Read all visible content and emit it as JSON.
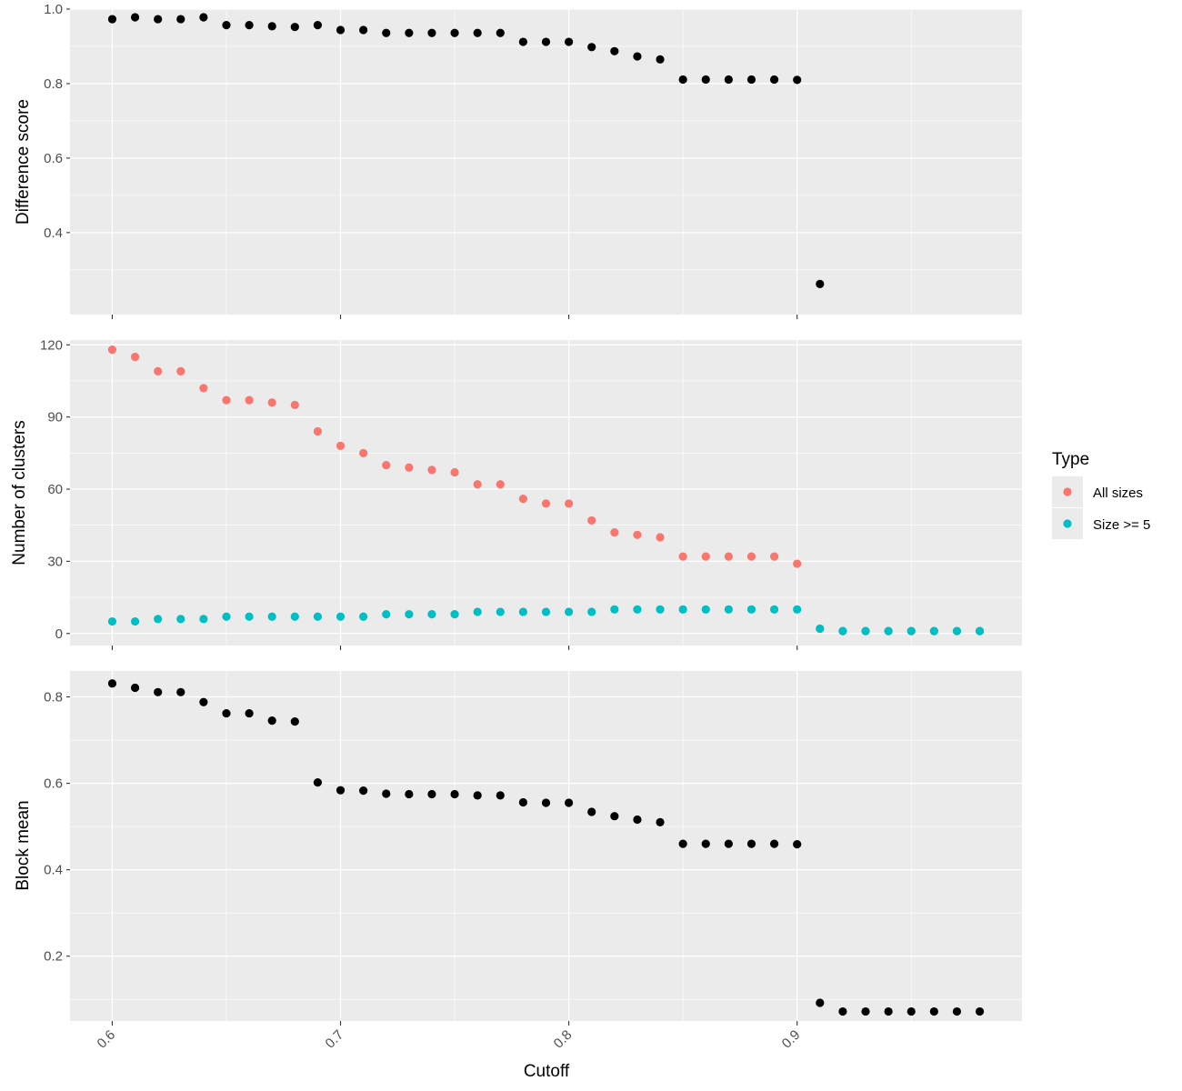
{
  "chart_data": {
    "type": "scatter",
    "xlabel": "Cutoff",
    "x_ticks": [
      0.6,
      0.7,
      0.8,
      0.9
    ],
    "x_tick_labels": [
      "0.6",
      "0.7",
      "0.8",
      "0.9"
    ],
    "xlim": [
      0.5815,
      0.9985
    ],
    "legend": {
      "title": "Type",
      "position": "right",
      "entries": [
        {
          "label": "All sizes",
          "color": "#F8766D"
        },
        {
          "label": "Size >= 5",
          "color": "#00BFC4"
        }
      ]
    },
    "panels": [
      {
        "ylabel": "Difference score",
        "ylim": [
          0.18,
          1.0
        ],
        "y_ticks": [
          0.4,
          0.6,
          0.8,
          1.0
        ],
        "y_tick_labels": [
          "0.4",
          "0.6",
          "0.8",
          "1.0"
        ],
        "series": [
          {
            "color": "#000000",
            "x": [
              0.6,
              0.61,
              0.62,
              0.63,
              0.64,
              0.65,
              0.66,
              0.67,
              0.68,
              0.69,
              0.7,
              0.71,
              0.72,
              0.73,
              0.74,
              0.75,
              0.76,
              0.77,
              0.78,
              0.79,
              0.8,
              0.81,
              0.82,
              0.83,
              0.84,
              0.85,
              0.86,
              0.87,
              0.88,
              0.89,
              0.9,
              0.91
            ],
            "y": [
              0.973,
              0.978,
              0.973,
              0.973,
              0.978,
              0.957,
              0.957,
              0.954,
              0.952,
              0.957,
              0.944,
              0.944,
              0.936,
              0.936,
              0.936,
              0.936,
              0.936,
              0.936,
              0.912,
              0.912,
              0.912,
              0.898,
              0.887,
              0.873,
              0.865,
              0.811,
              0.811,
              0.811,
              0.811,
              0.811,
              0.81,
              0.262
            ]
          }
        ]
      },
      {
        "ylabel": "Number of clusters",
        "ylim": [
          -5,
          122
        ],
        "y_ticks": [
          0,
          30,
          60,
          90,
          120
        ],
        "y_tick_labels": [
          "0",
          "30",
          "60",
          "90",
          "120"
        ],
        "series": [
          {
            "name": "All sizes",
            "color": "#F8766D",
            "x": [
              0.6,
              0.61,
              0.62,
              0.63,
              0.64,
              0.65,
              0.66,
              0.67,
              0.68,
              0.69,
              0.7,
              0.71,
              0.72,
              0.73,
              0.74,
              0.75,
              0.76,
              0.77,
              0.78,
              0.79,
              0.8,
              0.81,
              0.82,
              0.83,
              0.84,
              0.85,
              0.86,
              0.87,
              0.88,
              0.89,
              0.9,
              0.91,
              0.92,
              0.93,
              0.94,
              0.95,
              0.96,
              0.97,
              0.98
            ],
            "y": [
              118,
              115,
              109,
              109,
              102,
              97,
              97,
              96,
              95,
              84,
              78,
              75,
              70,
              69,
              68,
              67,
              62,
              62,
              56,
              54,
              54,
              47,
              42,
              41,
              40,
              32,
              32,
              32,
              32,
              32,
              29,
              2,
              1,
              1,
              1,
              1,
              1,
              1,
              1
            ]
          },
          {
            "name": "Size >= 5",
            "color": "#00BFC4",
            "x": [
              0.6,
              0.61,
              0.62,
              0.63,
              0.64,
              0.65,
              0.66,
              0.67,
              0.68,
              0.69,
              0.7,
              0.71,
              0.72,
              0.73,
              0.74,
              0.75,
              0.76,
              0.77,
              0.78,
              0.79,
              0.8,
              0.81,
              0.82,
              0.83,
              0.84,
              0.85,
              0.86,
              0.87,
              0.88,
              0.89,
              0.9,
              0.91,
              0.92,
              0.93,
              0.94,
              0.95,
              0.96,
              0.97,
              0.98
            ],
            "y": [
              5,
              5,
              6,
              6,
              6,
              7,
              7,
              7,
              7,
              7,
              7,
              7,
              8,
              8,
              8,
              8,
              9,
              9,
              9,
              9,
              9,
              9,
              10,
              10,
              10,
              10,
              10,
              10,
              10,
              10,
              10,
              2,
              1,
              1,
              1,
              1,
              1,
              1,
              1
            ]
          }
        ]
      },
      {
        "ylabel": "Block mean",
        "ylim": [
          0.05,
          0.86
        ],
        "y_ticks": [
          0.2,
          0.4,
          0.6,
          0.8
        ],
        "y_tick_labels": [
          "0.2",
          "0.4",
          "0.6",
          "0.8"
        ],
        "series": [
          {
            "color": "#000000",
            "x": [
              0.6,
              0.61,
              0.62,
              0.63,
              0.64,
              0.65,
              0.66,
              0.67,
              0.68,
              0.69,
              0.7,
              0.71,
              0.72,
              0.73,
              0.74,
              0.75,
              0.76,
              0.77,
              0.78,
              0.79,
              0.8,
              0.81,
              0.82,
              0.83,
              0.84,
              0.85,
              0.86,
              0.87,
              0.88,
              0.89,
              0.9,
              0.91,
              0.92,
              0.93,
              0.94,
              0.95,
              0.96,
              0.97,
              0.98
            ],
            "y": [
              0.831,
              0.821,
              0.811,
              0.811,
              0.788,
              0.762,
              0.762,
              0.745,
              0.743,
              0.602,
              0.584,
              0.583,
              0.576,
              0.575,
              0.575,
              0.575,
              0.572,
              0.572,
              0.556,
              0.555,
              0.555,
              0.534,
              0.524,
              0.516,
              0.51,
              0.46,
              0.46,
              0.46,
              0.46,
              0.46,
              0.459,
              0.092,
              0.072,
              0.072,
              0.072,
              0.072,
              0.072,
              0.072,
              0.072
            ]
          }
        ]
      }
    ]
  }
}
